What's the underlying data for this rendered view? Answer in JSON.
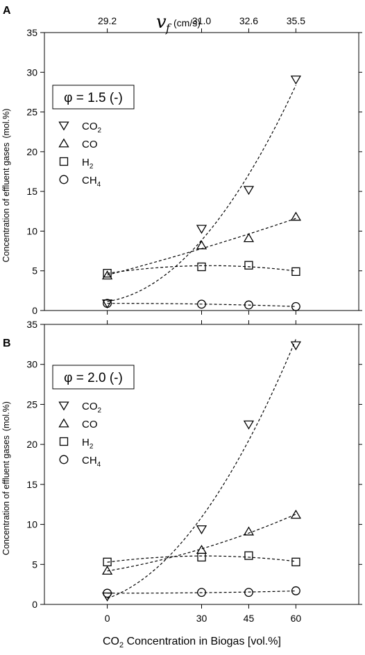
{
  "figure": {
    "top_axis_symbol": "v",
    "top_axis_subscript": "f",
    "top_axis_unit": "(cm/s)",
    "x_axis_label_main": "CO",
    "x_axis_label_sub": "2",
    "x_axis_label_rest": " Concentration in Biogas [vol.%]"
  },
  "colors": {
    "markers": "#000000",
    "fit_lines": "#000000",
    "background": "#ffffff"
  },
  "chart_data": [
    {
      "type": "scatter",
      "panel_letter": "A",
      "ylabel": "Concentration of effluent gases",
      "ylabel_unit": "(mol.%)",
      "x": [
        0,
        30,
        45,
        60
      ],
      "xticks": [
        "0",
        "30",
        "45",
        "60"
      ],
      "xlim": [
        -20,
        80
      ],
      "top_axis_ticks": [
        "29.2",
        "31.0",
        "32.6",
        "35.5"
      ],
      "ylim": [
        0,
        35
      ],
      "yticks": [
        0,
        5,
        10,
        15,
        20,
        25,
        30,
        35
      ],
      "box_label": "φ = 1.5 (-)",
      "legend_placement": "upper-left",
      "grid": false,
      "series": [
        {
          "name": "CO",
          "sub": "2",
          "marker": "triangle-down",
          "values": [
            0.9,
            10.3,
            15.2,
            29.1
          ]
        },
        {
          "name": "CO",
          "sub": "",
          "marker": "triangle-up",
          "values": [
            4.4,
            8.2,
            9.1,
            11.8
          ]
        },
        {
          "name": "H",
          "sub": "2",
          "marker": "square",
          "values": [
            4.7,
            5.5,
            5.7,
            4.9
          ]
        },
        {
          "name": "CH",
          "sub": "4",
          "marker": "circle",
          "values": [
            0.9,
            0.8,
            0.7,
            0.5
          ]
        }
      ]
    },
    {
      "type": "scatter",
      "panel_letter": "B",
      "ylabel": "Concentration of effluent gases",
      "ylabel_unit": "(mol.%)",
      "x": [
        0,
        30,
        45,
        60
      ],
      "xticks": [
        "0",
        "30",
        "45",
        "60"
      ],
      "xlim": [
        -20,
        80
      ],
      "top_axis_ticks": [],
      "ylim": [
        0,
        35
      ],
      "yticks": [
        0,
        5,
        10,
        15,
        20,
        25,
        30,
        35
      ],
      "box_label": "φ = 2.0 (-)",
      "legend_placement": "upper-left",
      "grid": false,
      "series": [
        {
          "name": "CO",
          "sub": "2",
          "marker": "triangle-down",
          "values": [
            1.0,
            9.4,
            22.5,
            32.4
          ]
        },
        {
          "name": "CO",
          "sub": "",
          "marker": "triangle-up",
          "values": [
            4.2,
            6.8,
            9.1,
            11.2
          ]
        },
        {
          "name": "H",
          "sub": "2",
          "marker": "square",
          "values": [
            5.3,
            5.9,
            6.1,
            5.3
          ]
        },
        {
          "name": "CH",
          "sub": "4",
          "marker": "circle",
          "values": [
            1.4,
            1.5,
            1.5,
            1.7
          ]
        }
      ]
    }
  ]
}
